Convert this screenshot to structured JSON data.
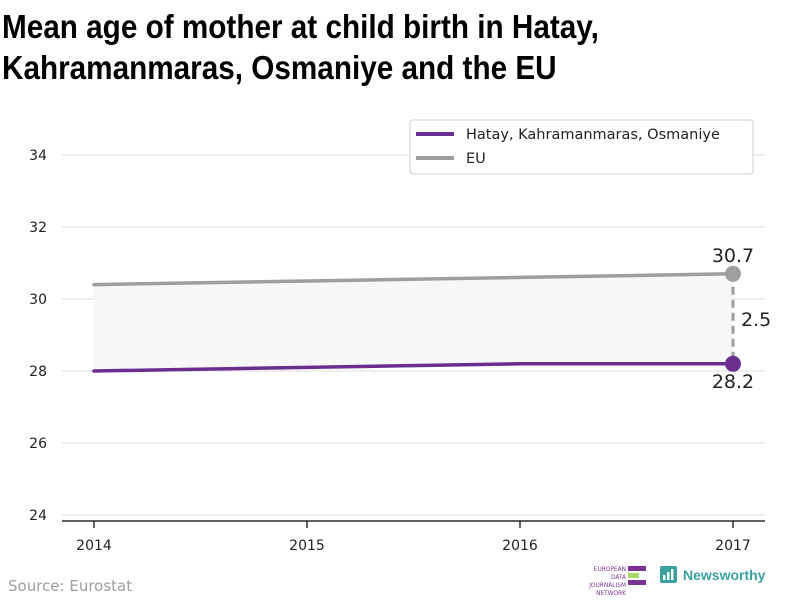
{
  "title_lines": [
    "Mean age of mother at child birth in Hatay,",
    "Kahramanmaras, Osmaniye and the EU"
  ],
  "source": "Source: Eurostat",
  "logos": {
    "ejn_lines": [
      "EUROPEAN",
      "DATA JOURNALISM",
      "NETWORK"
    ],
    "newsworthy": "Newsworthy"
  },
  "colors": {
    "hatay": "#6a2e8f",
    "eu": "#9e9e9e",
    "band": "#f7f7f7",
    "grid": "#dddddd",
    "ejn_purple": "#7b3294",
    "ejn_green": "#a6d96a",
    "newsworthy": "#3aa0a0"
  },
  "chart_data": {
    "type": "line",
    "title": "Mean age of mother at child birth in Hatay, Kahramanmaras, Osmaniye and the EU",
    "x": [
      2014,
      2015,
      2016,
      2017
    ],
    "x_tick_labels": [
      "2014",
      "2015",
      "2016",
      "2017"
    ],
    "y_ticks": [
      24,
      26,
      28,
      30,
      32,
      34
    ],
    "y_tick_labels": [
      "24",
      "26",
      "28",
      "30",
      "32",
      "34"
    ],
    "ylim": [
      23.8,
      35.6
    ],
    "xlabel": "",
    "ylabel": "",
    "legend_position": "top-right",
    "series": [
      {
        "name": "Hatay, Kahramanmaras, Osmaniye",
        "values": [
          28.0,
          28.1,
          28.2,
          28.2
        ]
      },
      {
        "name": "EU",
        "values": [
          30.4,
          30.5,
          30.6,
          30.7
        ]
      }
    ],
    "annotations": {
      "eu_last_label": "30.7",
      "hatay_last_label": "28.2",
      "difference_label": "2.5"
    }
  }
}
